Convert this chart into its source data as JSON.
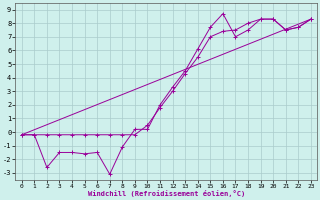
{
  "xlabel": "Windchill (Refroidissement éolien,°C)",
  "background_color": "#cff0ec",
  "grid_color": "#aacccc",
  "line_color": "#990099",
  "xlim": [
    -0.5,
    23.5
  ],
  "ylim": [
    -3.5,
    9.5
  ],
  "xticks": [
    0,
    1,
    2,
    3,
    4,
    5,
    6,
    7,
    8,
    9,
    10,
    11,
    12,
    13,
    14,
    15,
    16,
    17,
    18,
    19,
    20,
    21,
    22,
    23
  ],
  "yticks": [
    -3,
    -2,
    -1,
    0,
    1,
    2,
    3,
    4,
    5,
    6,
    7,
    8,
    9
  ],
  "series1_x": [
    0,
    1,
    2,
    3,
    4,
    5,
    6,
    7,
    8,
    9,
    10,
    11,
    12,
    13,
    14,
    15,
    16,
    17,
    18,
    19,
    20,
    21,
    22,
    23
  ],
  "series1_y": [
    -0.2,
    -0.2,
    -2.6,
    -1.5,
    -1.5,
    -1.6,
    -1.5,
    -3.1,
    -1.1,
    0.2,
    0.2,
    2.0,
    3.3,
    4.5,
    6.1,
    7.7,
    8.7,
    7.0,
    7.5,
    8.3,
    8.3,
    7.5,
    7.7,
    8.3
  ],
  "series2_x": [
    0,
    1,
    2,
    3,
    4,
    5,
    6,
    7,
    8,
    9,
    10,
    11,
    12,
    13,
    14,
    15,
    16,
    17,
    18,
    19,
    20,
    21,
    22,
    23
  ],
  "series2_y": [
    -0.2,
    -0.2,
    -0.2,
    -0.2,
    -0.2,
    -0.2,
    -0.2,
    -0.2,
    -0.2,
    -0.2,
    0.5,
    1.8,
    3.0,
    4.3,
    5.5,
    7.0,
    7.4,
    7.5,
    8.0,
    8.3,
    8.3,
    7.5,
    7.7,
    8.3
  ],
  "series3_x": [
    0,
    23
  ],
  "series3_y": [
    -0.2,
    8.3
  ]
}
